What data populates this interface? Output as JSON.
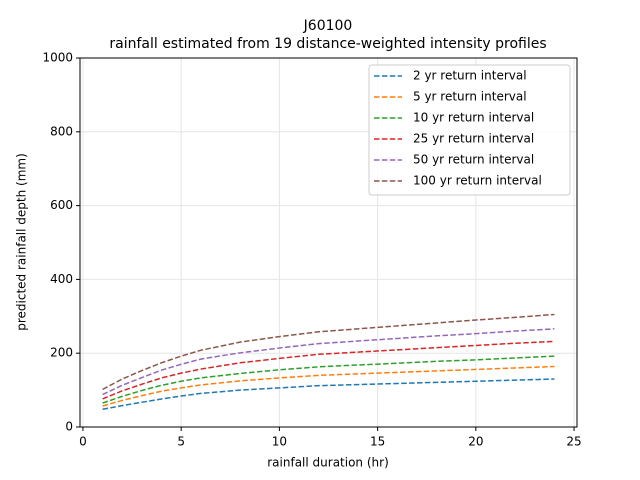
{
  "chart_data": {
    "type": "line",
    "title": "J60100",
    "subtitle": "rainfall estimated from 19 distance-weighted intensity profiles",
    "x_label": "rainfall duration (hr)",
    "y_label": "predicted rainfall depth (mm)",
    "x": [
      1,
      2,
      3,
      4,
      5,
      6,
      8,
      10,
      12,
      14,
      16,
      18,
      20,
      22,
      24
    ],
    "series": [
      {
        "name": "2 yr return interval",
        "color": "#1f77b4",
        "values": [
          48,
          58,
          67,
          76,
          84,
          91,
          100,
          106,
          112,
          115,
          118,
          121,
          124,
          127,
          130
        ]
      },
      {
        "name": "5 yr return interval",
        "color": "#ff7f0e",
        "values": [
          57,
          72,
          85,
          97,
          106,
          114,
          125,
          133,
          140,
          144,
          148,
          152,
          156,
          160,
          164
        ]
      },
      {
        "name": "10 yr return interval",
        "color": "#2ca02c",
        "values": [
          65,
          83,
          99,
          113,
          124,
          133,
          145,
          155,
          163,
          168,
          173,
          178,
          182,
          187,
          192
        ]
      },
      {
        "name": "25 yr return interval",
        "color": "#d62728",
        "values": [
          76,
          98,
          116,
          133,
          146,
          157,
          174,
          186,
          197,
          203,
          209,
          215,
          221,
          227,
          232
        ]
      },
      {
        "name": "50 yr return interval",
        "color": "#9467bd",
        "values": [
          88,
          113,
          134,
          154,
          170,
          184,
          201,
          214,
          226,
          233,
          240,
          247,
          253,
          260,
          266
        ]
      },
      {
        "name": "100 yr return interval",
        "color": "#8c564b",
        "values": [
          102,
          130,
          153,
          174,
          192,
          208,
          230,
          245,
          258,
          266,
          274,
          282,
          290,
          297,
          305
        ]
      }
    ],
    "xlim": [
      -0.15,
      25.15
    ],
    "xticks": [
      0,
      5,
      10,
      15,
      20,
      25
    ],
    "ylim": [
      0,
      1000
    ],
    "yticks": [
      0,
      200,
      400,
      600,
      800,
      1000
    ],
    "grid": true,
    "legend": "upper right",
    "dashed": true
  }
}
